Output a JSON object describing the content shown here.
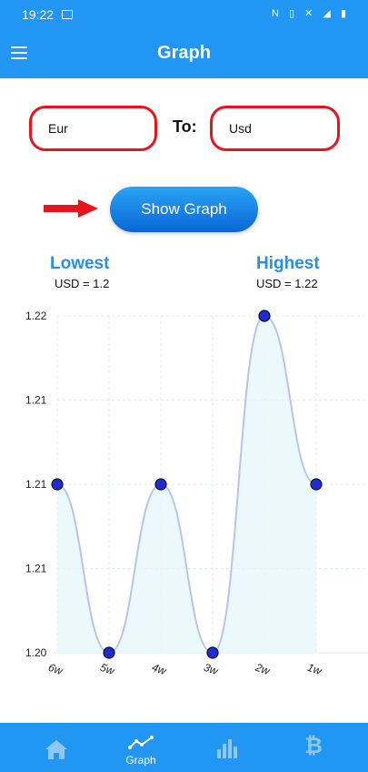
{
  "status_bar": {
    "time": "19:22",
    "right_icons": "N ▯ ✕ ◢ ▮"
  },
  "app_bar": {
    "title": "Graph"
  },
  "form": {
    "from_value": "Eur",
    "to_label": "To:",
    "to_value": "Usd",
    "button_label": "Show Graph"
  },
  "stats": {
    "lowest_title": "Lowest",
    "lowest_value": "USD = 1.2",
    "highest_title": "Highest",
    "highest_value": "USD = 1.22"
  },
  "chart_data": {
    "type": "line",
    "categories": [
      "6w",
      "5w",
      "4w",
      "3w",
      "2w",
      "1w"
    ],
    "values": [
      1.21,
      1.2,
      1.21,
      1.2,
      1.22,
      1.21
    ],
    "y_ticks": [
      "1.20",
      "1.21",
      "1.21",
      "1.21",
      "1.22"
    ],
    "y_tick_values": [
      1.2,
      1.205,
      1.21,
      1.215,
      1.22
    ],
    "ylim": [
      1.2,
      1.22
    ],
    "grid": true
  },
  "colors": {
    "primary": "#2196f3",
    "accent_red": "#e8141d",
    "stat_blue": "#2a8de8",
    "point_fill": "#1e2bd6",
    "line": "#b8c4ec",
    "area": "#e6f7fb"
  },
  "bottom_nav": {
    "items": [
      {
        "icon": "home-icon",
        "label": ""
      },
      {
        "icon": "graph-icon",
        "label": "Graph"
      },
      {
        "icon": "bar-chart-icon",
        "label": ""
      },
      {
        "icon": "bitcoin-icon",
        "label": ""
      }
    ]
  }
}
